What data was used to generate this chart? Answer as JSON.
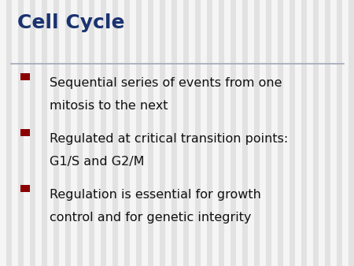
{
  "title": "Cell Cycle",
  "title_color": "#1a3370",
  "title_fontsize": 18,
  "background_color": "#f0f0f0",
  "stripe_color_light": "#f5f5f5",
  "stripe_color_dark": "#e2e2e2",
  "separator_color": "#a0a8b8",
  "bullet_color": "#8B0000",
  "text_color": "#111111",
  "bullet_points": [
    [
      "Sequential series of events from one",
      "mitosis to the next"
    ],
    [
      "Regulated at critical transition points:",
      "G1/S and G2/M"
    ],
    [
      "Regulation is essential for growth",
      "control and for genetic integrity"
    ]
  ],
  "text_fontsize": 11.5,
  "figsize": [
    4.5,
    3.38
  ],
  "dpi": 100,
  "n_stripes": 60
}
